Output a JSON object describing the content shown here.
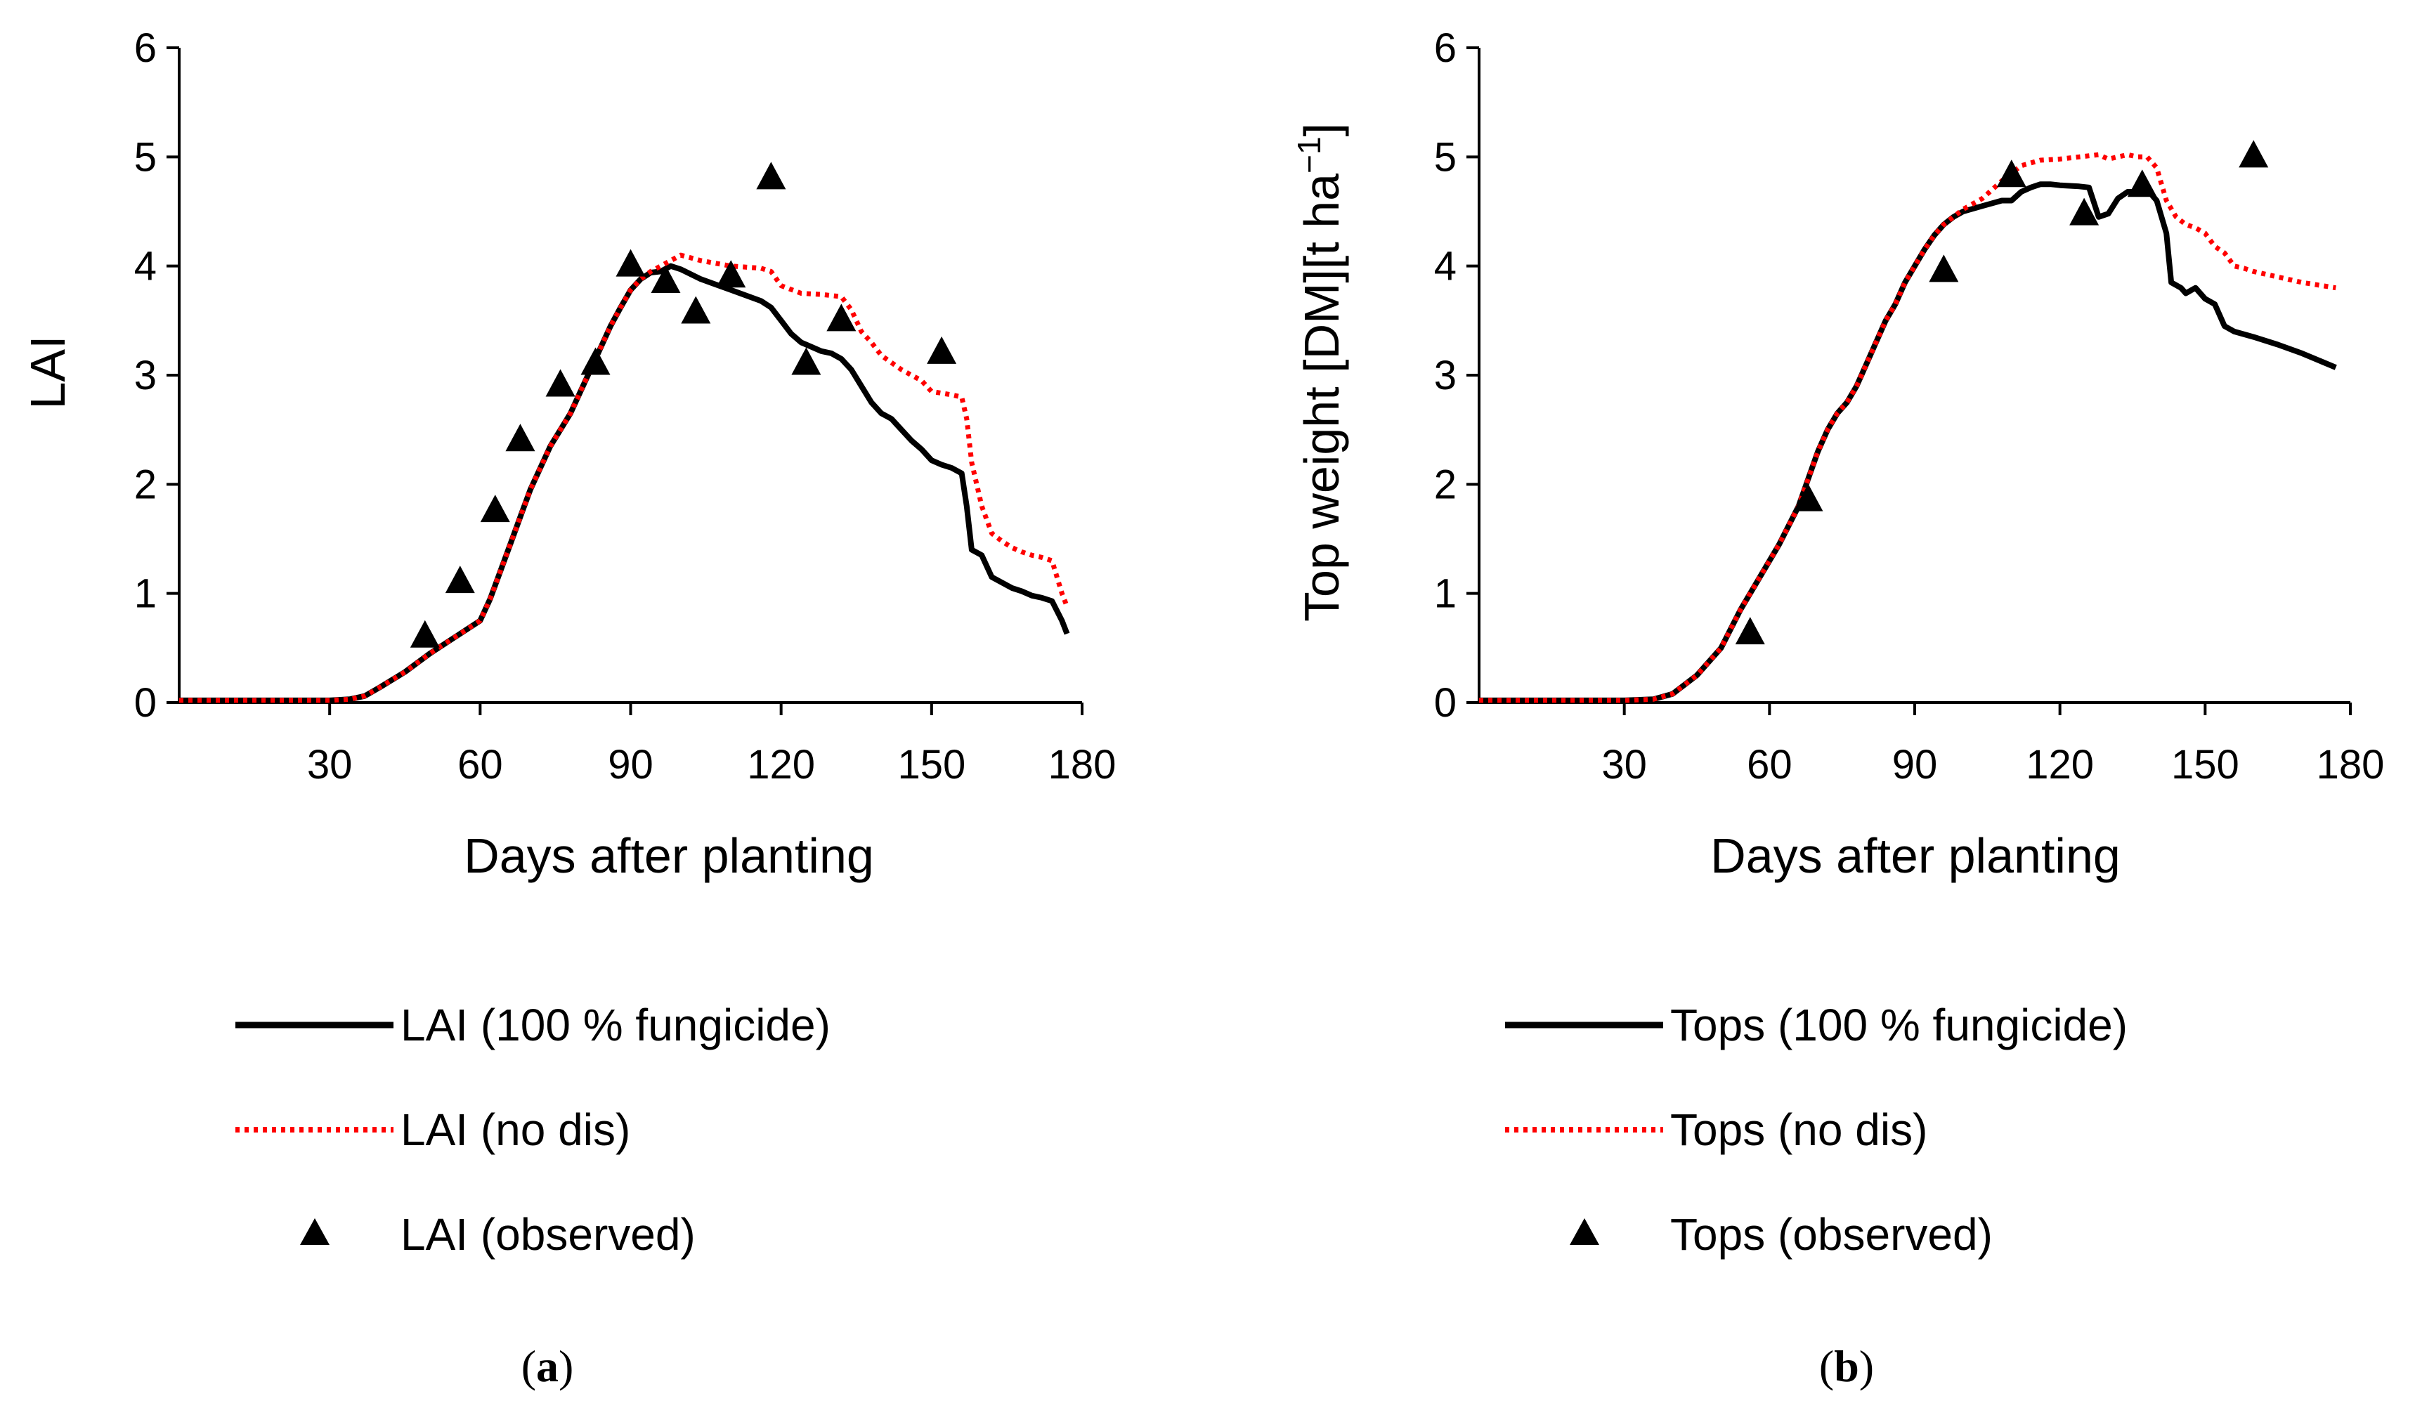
{
  "chart_data": [
    {
      "type": "line",
      "panel": "a",
      "caption": {
        "open": "(",
        "letter": "a",
        "close": ")"
      },
      "xlabel": "Days after planting",
      "ylabel": "LAI",
      "xlim": [
        0,
        180
      ],
      "ylim": [
        0,
        6
      ],
      "xticks": [
        30,
        60,
        90,
        120,
        150,
        180
      ],
      "yticks": [
        0,
        1,
        2,
        3,
        4,
        5,
        6
      ],
      "grid": false,
      "legend_position": "bottom",
      "series": [
        {
          "name": "LAI (100 % fungicide)",
          "style": "solid",
          "color": "#000000",
          "points": [
            [
              0,
              0.02
            ],
            [
              20,
              0.02
            ],
            [
              30,
              0.02
            ],
            [
              34,
              0.03
            ],
            [
              37,
              0.06
            ],
            [
              40,
              0.14
            ],
            [
              45,
              0.28
            ],
            [
              50,
              0.45
            ],
            [
              55,
              0.6
            ],
            [
              60,
              0.75
            ],
            [
              62,
              0.95
            ],
            [
              64,
              1.2
            ],
            [
              66,
              1.45
            ],
            [
              68,
              1.7
            ],
            [
              70,
              1.95
            ],
            [
              72,
              2.15
            ],
            [
              74,
              2.35
            ],
            [
              76,
              2.5
            ],
            [
              78,
              2.65
            ],
            [
              80,
              2.85
            ],
            [
              82,
              3.05
            ],
            [
              84,
              3.25
            ],
            [
              86,
              3.45
            ],
            [
              88,
              3.62
            ],
            [
              90,
              3.78
            ],
            [
              92,
              3.88
            ],
            [
              94,
              3.94
            ],
            [
              96,
              3.95
            ],
            [
              98,
              4.0
            ],
            [
              100,
              3.97
            ],
            [
              104,
              3.88
            ],
            [
              110,
              3.78
            ],
            [
              116,
              3.68
            ],
            [
              118,
              3.62
            ],
            [
              120,
              3.5
            ],
            [
              122,
              3.38
            ],
            [
              124,
              3.3
            ],
            [
              126,
              3.26
            ],
            [
              128,
              3.22
            ],
            [
              130,
              3.2
            ],
            [
              132,
              3.15
            ],
            [
              134,
              3.05
            ],
            [
              136,
              2.9
            ],
            [
              138,
              2.75
            ],
            [
              140,
              2.65
            ],
            [
              142,
              2.6
            ],
            [
              144,
              2.5
            ],
            [
              146,
              2.4
            ],
            [
              148,
              2.32
            ],
            [
              150,
              2.22
            ],
            [
              152,
              2.18
            ],
            [
              154,
              2.15
            ],
            [
              156,
              2.1
            ],
            [
              157,
              1.8
            ],
            [
              158,
              1.4
            ],
            [
              160,
              1.35
            ],
            [
              162,
              1.15
            ],
            [
              164,
              1.1
            ],
            [
              166,
              1.05
            ],
            [
              168,
              1.02
            ],
            [
              170,
              0.98
            ],
            [
              172,
              0.96
            ],
            [
              174,
              0.93
            ],
            [
              176,
              0.75
            ],
            [
              177,
              0.63
            ]
          ]
        },
        {
          "name": "LAI (no dis)",
          "style": "dotted",
          "color": "#ff0000",
          "points": [
            [
              0,
              0.02
            ],
            [
              20,
              0.02
            ],
            [
              30,
              0.02
            ],
            [
              34,
              0.03
            ],
            [
              37,
              0.06
            ],
            [
              40,
              0.14
            ],
            [
              45,
              0.28
            ],
            [
              50,
              0.45
            ],
            [
              55,
              0.6
            ],
            [
              60,
              0.75
            ],
            [
              62,
              0.95
            ],
            [
              64,
              1.2
            ],
            [
              66,
              1.45
            ],
            [
              68,
              1.7
            ],
            [
              70,
              1.95
            ],
            [
              72,
              2.15
            ],
            [
              74,
              2.35
            ],
            [
              76,
              2.5
            ],
            [
              78,
              2.65
            ],
            [
              80,
              2.85
            ],
            [
              82,
              3.05
            ],
            [
              84,
              3.25
            ],
            [
              86,
              3.45
            ],
            [
              88,
              3.62
            ],
            [
              90,
              3.78
            ],
            [
              92,
              3.88
            ],
            [
              94,
              3.95
            ],
            [
              96,
              4.0
            ],
            [
              98,
              4.05
            ],
            [
              100,
              4.1
            ],
            [
              104,
              4.05
            ],
            [
              110,
              4.0
            ],
            [
              116,
              3.98
            ],
            [
              118,
              3.95
            ],
            [
              120,
              3.82
            ],
            [
              124,
              3.75
            ],
            [
              128,
              3.74
            ],
            [
              132,
              3.72
            ],
            [
              134,
              3.6
            ],
            [
              136,
              3.4
            ],
            [
              138,
              3.3
            ],
            [
              140,
              3.18
            ],
            [
              144,
              3.05
            ],
            [
              148,
              2.95
            ],
            [
              150,
              2.85
            ],
            [
              154,
              2.82
            ],
            [
              156,
              2.8
            ],
            [
              157,
              2.6
            ],
            [
              158,
              2.2
            ],
            [
              160,
              1.8
            ],
            [
              162,
              1.55
            ],
            [
              164,
              1.48
            ],
            [
              166,
              1.42
            ],
            [
              168,
              1.38
            ],
            [
              170,
              1.35
            ],
            [
              172,
              1.33
            ],
            [
              174,
              1.3
            ],
            [
              176,
              1.0
            ],
            [
              177,
              0.88
            ]
          ]
        },
        {
          "name": "LAI (observed)",
          "style": "marker",
          "marker": "triangle",
          "color": "#000000",
          "points": [
            [
              49,
              0.6
            ],
            [
              56,
              1.1
            ],
            [
              63,
              1.75
            ],
            [
              68,
              2.4
            ],
            [
              76,
              2.9
            ],
            [
              83,
              3.1
            ],
            [
              90,
              4.0
            ],
            [
              97,
              3.85
            ],
            [
              103,
              3.57
            ],
            [
              110,
              3.9
            ],
            [
              118,
              4.8
            ],
            [
              125,
              3.1
            ],
            [
              132,
              3.5
            ],
            [
              152,
              3.2
            ]
          ]
        }
      ]
    },
    {
      "type": "line",
      "panel": "b",
      "caption": {
        "open": "(",
        "letter": "b",
        "close": ")"
      },
      "xlabel": "Days after planting",
      "ylabel": "Top weight [DM][t ha",
      "ylabel_sup": "−1",
      "ylabel_close": "]",
      "xlim": [
        0,
        180
      ],
      "ylim": [
        0,
        6
      ],
      "xticks": [
        30,
        60,
        90,
        120,
        150,
        180
      ],
      "yticks": [
        0,
        1,
        2,
        3,
        4,
        5,
        6
      ],
      "grid": false,
      "legend_position": "bottom",
      "series": [
        {
          "name": "Tops (100 % fungicide)",
          "style": "solid",
          "color": "#000000",
          "points": [
            [
              0,
              0.02
            ],
            [
              30,
              0.02
            ],
            [
              36,
              0.03
            ],
            [
              40,
              0.08
            ],
            [
              45,
              0.25
            ],
            [
              50,
              0.5
            ],
            [
              54,
              0.85
            ],
            [
              58,
              1.15
            ],
            [
              62,
              1.45
            ],
            [
              66,
              1.8
            ],
            [
              68,
              2.05
            ],
            [
              70,
              2.3
            ],
            [
              72,
              2.5
            ],
            [
              74,
              2.65
            ],
            [
              76,
              2.75
            ],
            [
              78,
              2.9
            ],
            [
              80,
              3.1
            ],
            [
              82,
              3.3
            ],
            [
              84,
              3.5
            ],
            [
              86,
              3.65
            ],
            [
              88,
              3.85
            ],
            [
              90,
              4.0
            ],
            [
              92,
              4.15
            ],
            [
              94,
              4.28
            ],
            [
              96,
              4.38
            ],
            [
              98,
              4.45
            ],
            [
              100,
              4.5
            ],
            [
              104,
              4.55
            ],
            [
              108,
              4.6
            ],
            [
              110,
              4.6
            ],
            [
              112,
              4.68
            ],
            [
              114,
              4.72
            ],
            [
              116,
              4.75
            ],
            [
              118,
              4.75
            ],
            [
              120,
              4.74
            ],
            [
              124,
              4.73
            ],
            [
              126,
              4.72
            ],
            [
              128,
              4.45
            ],
            [
              130,
              4.48
            ],
            [
              132,
              4.62
            ],
            [
              134,
              4.68
            ],
            [
              136,
              4.68
            ],
            [
              138,
              4.7
            ],
            [
              140,
              4.6
            ],
            [
              142,
              4.3
            ],
            [
              143,
              3.85
            ],
            [
              145,
              3.8
            ],
            [
              146,
              3.75
            ],
            [
              148,
              3.8
            ],
            [
              150,
              3.7
            ],
            [
              152,
              3.65
            ],
            [
              154,
              3.45
            ],
            [
              156,
              3.4
            ],
            [
              160,
              3.35
            ],
            [
              165,
              3.28
            ],
            [
              170,
              3.2
            ],
            [
              177,
              3.07
            ]
          ]
        },
        {
          "name": "Tops (no dis)",
          "style": "dotted",
          "color": "#ff0000",
          "points": [
            [
              0,
              0.02
            ],
            [
              30,
              0.02
            ],
            [
              36,
              0.03
            ],
            [
              40,
              0.08
            ],
            [
              45,
              0.25
            ],
            [
              50,
              0.5
            ],
            [
              54,
              0.85
            ],
            [
              58,
              1.15
            ],
            [
              62,
              1.45
            ],
            [
              66,
              1.8
            ],
            [
              68,
              2.05
            ],
            [
              70,
              2.3
            ],
            [
              72,
              2.5
            ],
            [
              74,
              2.65
            ],
            [
              76,
              2.75
            ],
            [
              78,
              2.9
            ],
            [
              80,
              3.1
            ],
            [
              82,
              3.3
            ],
            [
              84,
              3.5
            ],
            [
              86,
              3.65
            ],
            [
              88,
              3.85
            ],
            [
              90,
              4.0
            ],
            [
              92,
              4.15
            ],
            [
              94,
              4.28
            ],
            [
              96,
              4.38
            ],
            [
              98,
              4.45
            ],
            [
              100,
              4.52
            ],
            [
              104,
              4.62
            ],
            [
              108,
              4.78
            ],
            [
              112,
              4.92
            ],
            [
              116,
              4.97
            ],
            [
              120,
              4.98
            ],
            [
              124,
              5.0
            ],
            [
              128,
              5.02
            ],
            [
              130,
              4.98
            ],
            [
              132,
              5.0
            ],
            [
              134,
              5.02
            ],
            [
              136,
              5.0
            ],
            [
              138,
              5.0
            ],
            [
              140,
              4.9
            ],
            [
              142,
              4.6
            ],
            [
              144,
              4.45
            ],
            [
              146,
              4.38
            ],
            [
              148,
              4.35
            ],
            [
              150,
              4.3
            ],
            [
              152,
              4.18
            ],
            [
              154,
              4.12
            ],
            [
              156,
              4.0
            ],
            [
              158,
              3.98
            ],
            [
              160,
              3.95
            ],
            [
              165,
              3.9
            ],
            [
              170,
              3.85
            ],
            [
              177,
              3.8
            ]
          ]
        },
        {
          "name": "Tops (observed)",
          "style": "marker",
          "marker": "triangle",
          "color": "#000000",
          "points": [
            [
              56,
              0.63
            ],
            [
              68,
              1.85
            ],
            [
              96,
              3.95
            ],
            [
              110,
              4.82
            ],
            [
              125,
              4.47
            ],
            [
              137,
              4.73
            ],
            [
              160,
              5.0
            ]
          ]
        }
      ]
    }
  ]
}
